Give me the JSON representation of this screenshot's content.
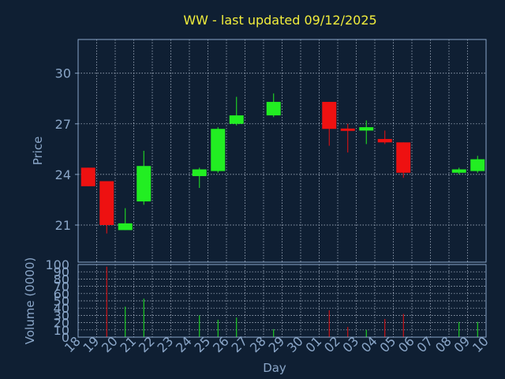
{
  "colors": {
    "background": "#0f1f33",
    "title": "#f2ee3c",
    "axis_text": "#8aa6c8",
    "frame": "#8aa6c8",
    "grid": "#b8c4d4",
    "up": "#22ee22",
    "down": "#ee1111"
  },
  "chart_data": {
    "type": "candlestick",
    "title": "WW - last updated 09/12/2025",
    "xlabel": "Day",
    "ylabel": "Price",
    "volume_label": "Volume (0000)",
    "grid": true,
    "categories": [
      "18",
      "19",
      "20",
      "21",
      "22",
      "23",
      "24",
      "25",
      "26",
      "27",
      "28",
      "29",
      "30",
      "01",
      "02",
      "03",
      "04",
      "05",
      "06",
      "07",
      "08",
      "09",
      "10"
    ],
    "price_ylim": [
      18.8,
      32
    ],
    "price_ticks": [
      21,
      24,
      27,
      30
    ],
    "volume_ylim": [
      0,
      100
    ],
    "volume_ticks": [
      0,
      10,
      20,
      30,
      40,
      50,
      60,
      70,
      80,
      90,
      100
    ],
    "candles": [
      {
        "day": "18",
        "open": 24.4,
        "high": 24.4,
        "low": 23.3,
        "close": 23.3,
        "volume": 0
      },
      {
        "day": "19",
        "open": 23.6,
        "high": 23.6,
        "low": 20.5,
        "close": 21.0,
        "volume": 97
      },
      {
        "day": "20",
        "open": 20.7,
        "high": 22.0,
        "low": 20.7,
        "close": 21.1,
        "volume": 42
      },
      {
        "day": "21",
        "open": 22.4,
        "high": 25.4,
        "low": 22.2,
        "close": 24.5,
        "volume": 53
      },
      {
        "day": "24",
        "open": 23.9,
        "high": 24.4,
        "low": 23.2,
        "close": 24.3,
        "volume": 30
      },
      {
        "day": "25",
        "open": 24.2,
        "high": 26.8,
        "low": 24.1,
        "close": 26.7,
        "volume": 24
      },
      {
        "day": "26",
        "open": 27.0,
        "high": 28.6,
        "low": 26.9,
        "close": 27.5,
        "volume": 27
      },
      {
        "day": "28",
        "open": 27.5,
        "high": 28.8,
        "low": 27.4,
        "close": 28.3,
        "volume": 11
      },
      {
        "day": "01",
        "open": 28.3,
        "high": 28.3,
        "low": 25.7,
        "close": 26.7,
        "volume": 37
      },
      {
        "day": "02",
        "open": 26.7,
        "high": 27.0,
        "low": 25.3,
        "close": 26.6,
        "volume": 14
      },
      {
        "day": "03",
        "open": 26.6,
        "high": 27.2,
        "low": 25.8,
        "close": 26.8,
        "volume": 10
      },
      {
        "day": "04",
        "open": 26.1,
        "high": 26.6,
        "low": 25.8,
        "close": 25.9,
        "volume": 25
      },
      {
        "day": "05",
        "open": 25.9,
        "high": 25.9,
        "low": 23.8,
        "close": 24.1,
        "volume": 32
      },
      {
        "day": "08",
        "open": 24.1,
        "high": 24.4,
        "low": 24.0,
        "close": 24.3,
        "volume": 21
      },
      {
        "day": "09",
        "open": 24.2,
        "high": 25.1,
        "low": 24.1,
        "close": 24.9,
        "volume": 21
      }
    ]
  }
}
